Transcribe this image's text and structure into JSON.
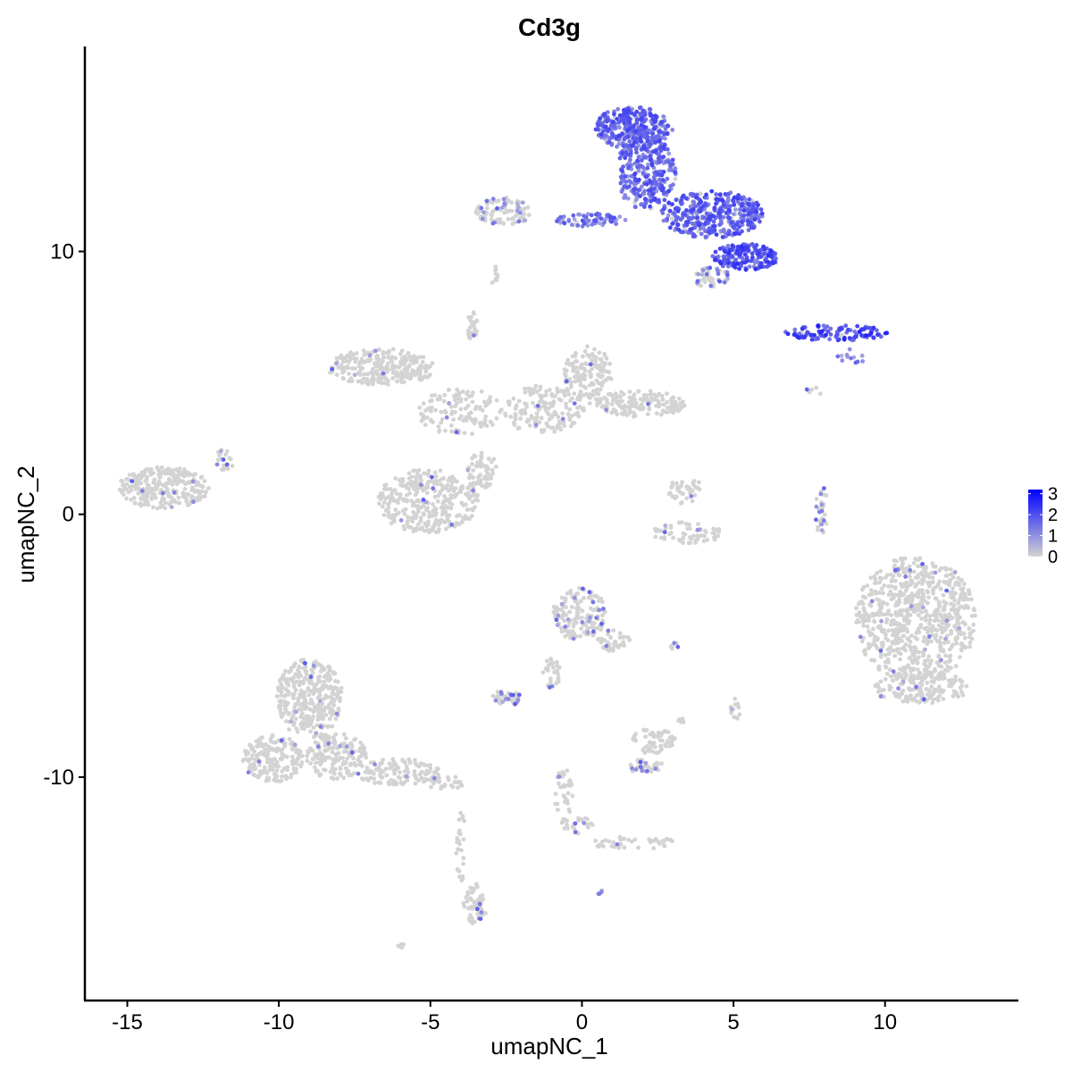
{
  "chart_data": {
    "type": "scatter",
    "title": "Cd3g",
    "xlabel": "umapNC_1",
    "ylabel": "umapNC_2",
    "xlim": [
      -16.4,
      14.4
    ],
    "ylim": [
      -18.5,
      17.8
    ],
    "x_ticks": [
      {
        "value": -15,
        "label": "-15"
      },
      {
        "value": -10,
        "label": "-10"
      },
      {
        "value": -5,
        "label": "-5"
      },
      {
        "value": 0,
        "label": "0"
      },
      {
        "value": 5,
        "label": "5"
      },
      {
        "value": 10,
        "label": "10"
      }
    ],
    "y_ticks": [
      {
        "value": -10,
        "label": "-10"
      },
      {
        "value": 0,
        "label": "0"
      },
      {
        "value": 10,
        "label": "10"
      }
    ],
    "grid": false,
    "legend": {
      "position": "right",
      "min": 0,
      "max": 3.2,
      "low_color": "#d3d3d3",
      "high_color": "#0000ff",
      "breaks": [
        {
          "value": 0,
          "label": "0"
        },
        {
          "value": 1,
          "label": "1"
        },
        {
          "value": 2,
          "label": "2"
        },
        {
          "value": 3,
          "label": "3"
        }
      ]
    },
    "clusters": [
      {
        "x": 1.7,
        "y": 14.7,
        "rx": 1.3,
        "ry": 0.8,
        "n": 300,
        "expr": 1.5
      },
      {
        "x": 2.1,
        "y": 13.0,
        "rx": 1.0,
        "ry": 1.4,
        "n": 300,
        "expr": 1.5
      },
      {
        "x": 4.3,
        "y": 11.4,
        "rx": 1.7,
        "ry": 0.9,
        "n": 380,
        "expr": 1.6
      },
      {
        "x": 5.4,
        "y": 9.8,
        "rx": 1.1,
        "ry": 0.5,
        "n": 180,
        "expr": 1.8
      },
      {
        "x": 0.3,
        "y": 11.2,
        "rx": 1.2,
        "ry": 0.25,
        "n": 70,
        "expr": 1.3
      },
      {
        "x": -2.6,
        "y": 11.5,
        "rx": 0.9,
        "ry": 0.55,
        "n": 90,
        "expr": 0.2
      },
      {
        "x": 4.3,
        "y": 9.0,
        "rx": 0.6,
        "ry": 0.4,
        "n": 50,
        "expr": 0.5
      },
      {
        "x": 8.4,
        "y": 6.9,
        "rx": 1.7,
        "ry": 0.3,
        "n": 110,
        "expr": 2.0
      },
      {
        "x": -6.6,
        "y": 5.6,
        "rx": 1.8,
        "ry": 0.7,
        "n": 260,
        "expr": 0.02
      },
      {
        "x": -4.0,
        "y": 3.9,
        "rx": 1.4,
        "ry": 0.9,
        "n": 120,
        "expr": 0.02
      },
      {
        "x": -1.3,
        "y": 4.0,
        "rx": 1.4,
        "ry": 0.9,
        "n": 150,
        "expr": 0.02
      },
      {
        "x": 0.2,
        "y": 5.3,
        "rx": 0.8,
        "ry": 1.1,
        "n": 140,
        "expr": 0.03
      },
      {
        "x": 1.9,
        "y": 4.2,
        "rx": 1.5,
        "ry": 0.5,
        "n": 150,
        "expr": 0.02
      },
      {
        "x": -3.6,
        "y": 7.2,
        "rx": 0.2,
        "ry": 0.6,
        "n": 25,
        "expr": 0.05
      },
      {
        "x": -5.1,
        "y": 0.5,
        "rx": 1.7,
        "ry": 1.2,
        "n": 330,
        "expr": 0.02
      },
      {
        "x": -3.3,
        "y": 1.7,
        "rx": 0.5,
        "ry": 0.7,
        "n": 60,
        "expr": 0.02
      },
      {
        "x": -13.8,
        "y": 1.0,
        "rx": 1.5,
        "ry": 0.8,
        "n": 260,
        "expr": 0.02
      },
      {
        "x": -11.8,
        "y": 2.0,
        "rx": 0.3,
        "ry": 0.5,
        "n": 20,
        "expr": 0.3
      },
      {
        "x": 3.4,
        "y": 0.9,
        "rx": 0.6,
        "ry": 0.5,
        "n": 40,
        "expr": 0.05
      },
      {
        "x": 3.5,
        "y": -0.7,
        "rx": 1.2,
        "ry": 0.4,
        "n": 60,
        "expr": 0.1
      },
      {
        "x": 7.9,
        "y": 0.2,
        "rx": 0.2,
        "ry": 1.0,
        "n": 30,
        "expr": 0.3
      },
      {
        "x": 11.0,
        "y": -4.0,
        "rx": 2.0,
        "ry": 2.4,
        "n": 720,
        "expr": 0.04
      },
      {
        "x": 11.2,
        "y": -6.6,
        "rx": 1.6,
        "ry": 0.6,
        "n": 150,
        "expr": 0.02
      },
      {
        "x": -0.1,
        "y": -3.8,
        "rx": 0.9,
        "ry": 1.0,
        "n": 150,
        "expr": 0.12
      },
      {
        "x": 1.0,
        "y": -4.8,
        "rx": 0.6,
        "ry": 0.4,
        "n": 40,
        "expr": 0.1
      },
      {
        "x": -1.0,
        "y": -6.0,
        "rx": 0.3,
        "ry": 0.6,
        "n": 30,
        "expr": 0.1
      },
      {
        "x": -2.5,
        "y": -7.0,
        "rx": 0.5,
        "ry": 0.3,
        "n": 40,
        "expr": 0.3
      },
      {
        "x": 3.0,
        "y": -5.0,
        "rx": 0.2,
        "ry": 0.15,
        "n": 8,
        "expr": 0.4
      },
      {
        "x": 2.3,
        "y": -8.6,
        "rx": 0.8,
        "ry": 0.5,
        "n": 60,
        "expr": 0.05
      },
      {
        "x": 2.1,
        "y": -9.6,
        "rx": 0.6,
        "ry": 0.3,
        "n": 40,
        "expr": 0.3
      },
      {
        "x": 5.1,
        "y": -7.4,
        "rx": 0.2,
        "ry": 0.4,
        "n": 15,
        "expr": 0.02
      },
      {
        "x": 3.3,
        "y": -7.8,
        "rx": 0.2,
        "ry": 0.2,
        "n": 8,
        "expr": 0.02
      },
      {
        "x": -0.6,
        "y": -10.8,
        "rx": 0.3,
        "ry": 1.2,
        "n": 40,
        "expr": 0.05
      },
      {
        "x": -0.1,
        "y": -11.9,
        "rx": 0.5,
        "ry": 0.4,
        "n": 20,
        "expr": 0.2
      },
      {
        "x": 1.7,
        "y": -12.5,
        "rx": 1.4,
        "ry": 0.25,
        "n": 40,
        "expr": 0.02
      },
      {
        "x": -9.0,
        "y": -7.0,
        "rx": 1.1,
        "ry": 1.5,
        "n": 330,
        "expr": 0.03
      },
      {
        "x": -10.2,
        "y": -9.3,
        "rx": 1.0,
        "ry": 0.9,
        "n": 200,
        "expr": 0.03
      },
      {
        "x": -8.1,
        "y": -9.2,
        "rx": 1.0,
        "ry": 0.9,
        "n": 160,
        "expr": 0.03
      },
      {
        "x": -6.1,
        "y": -9.8,
        "rx": 1.4,
        "ry": 0.5,
        "n": 120,
        "expr": 0.02
      },
      {
        "x": -4.5,
        "y": -10.2,
        "rx": 0.6,
        "ry": 0.3,
        "n": 30,
        "expr": 0.02
      },
      {
        "x": -4.0,
        "y": -12.6,
        "rx": 0.15,
        "ry": 1.5,
        "n": 25,
        "expr": 0.02
      },
      {
        "x": -3.6,
        "y": -14.8,
        "rx": 0.35,
        "ry": 0.8,
        "n": 40,
        "expr": 0.1
      },
      {
        "x": -3.4,
        "y": -15.2,
        "rx": 0.3,
        "ry": 0.4,
        "n": 20,
        "expr": 0.3
      },
      {
        "x": -6.0,
        "y": -16.4,
        "rx": 0.15,
        "ry": 0.1,
        "n": 5,
        "expr": 0.0
      },
      {
        "x": -2.9,
        "y": 9.1,
        "rx": 0.2,
        "ry": 0.4,
        "n": 10,
        "expr": 0.1
      },
      {
        "x": 7.7,
        "y": 4.7,
        "rx": 0.3,
        "ry": 0.15,
        "n": 6,
        "expr": 0.2
      },
      {
        "x": 0.6,
        "y": -14.4,
        "rx": 0.1,
        "ry": 0.1,
        "n": 4,
        "expr": 1.0
      },
      {
        "x": 8.9,
        "y": 6.0,
        "rx": 0.5,
        "ry": 0.3,
        "n": 12,
        "expr": 1.0
      }
    ]
  }
}
